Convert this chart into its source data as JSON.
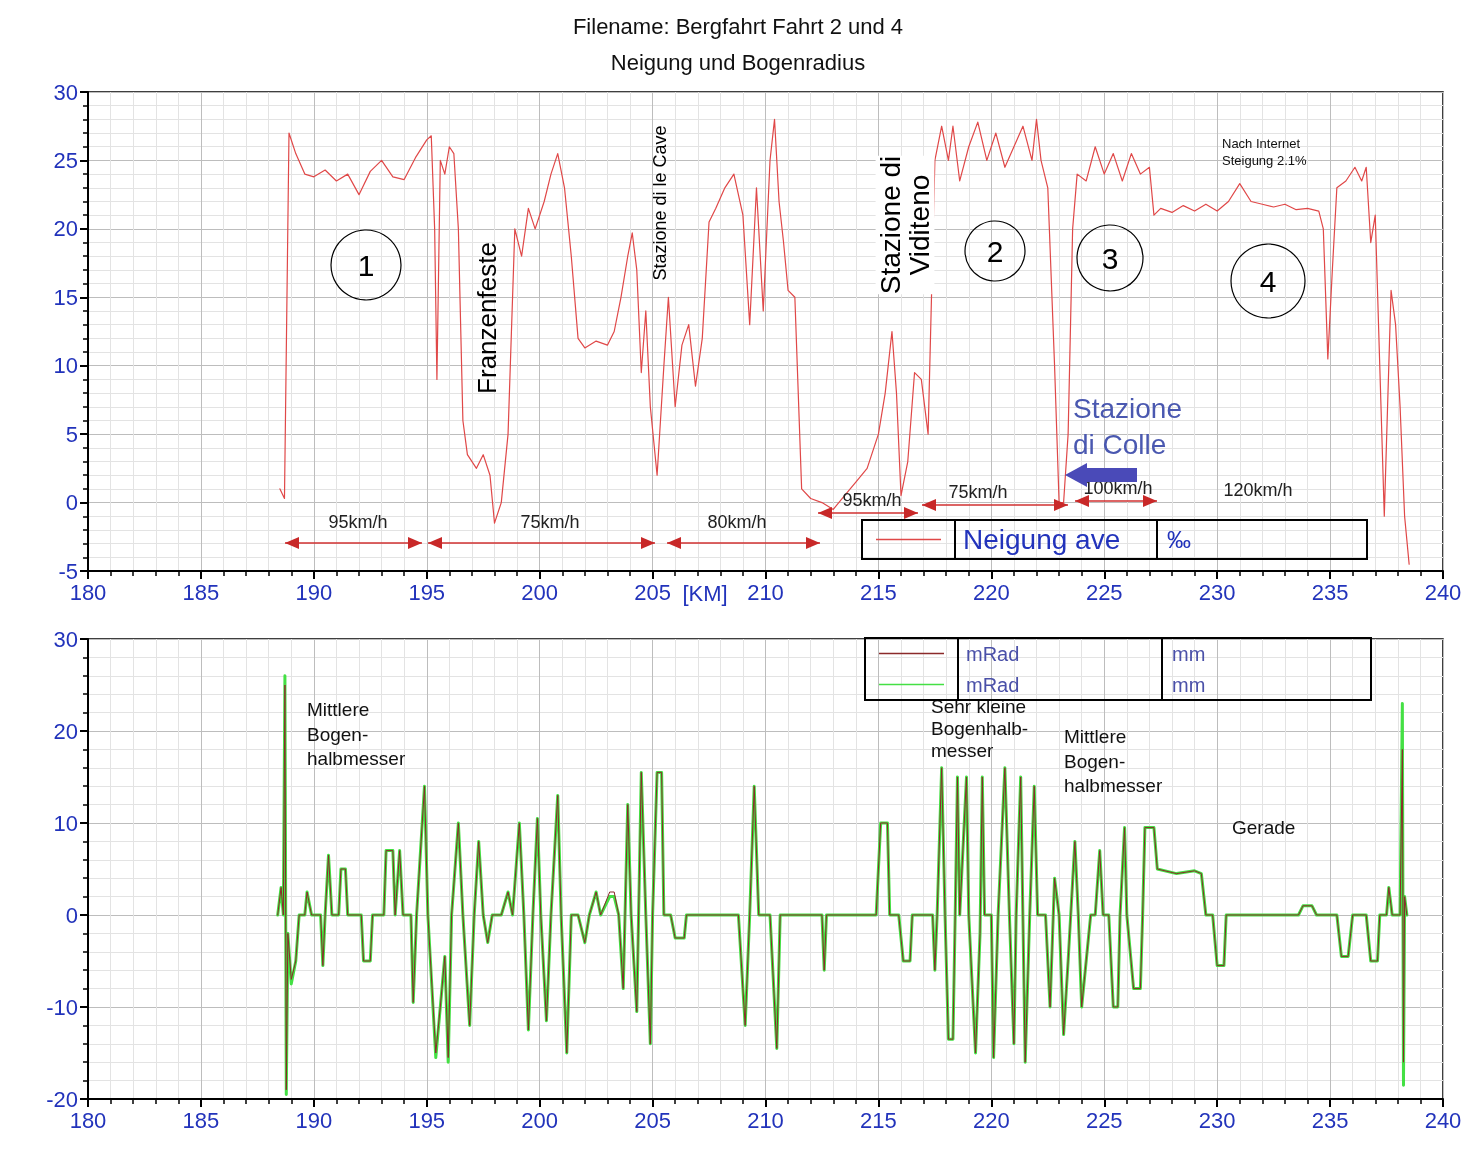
{
  "chart_data": [
    {
      "type": "line",
      "title": "Filename: Bergfahrt Fahrt 2 und 4",
      "subtitle": "Neigung und Bogenradius",
      "xlabel": "[KM]",
      "xlim": [
        180,
        240
      ],
      "xticks": [
        180,
        185,
        190,
        195,
        200,
        205,
        210,
        215,
        220,
        225,
        230,
        235,
        240
      ],
      "ylim": [
        -5,
        30
      ],
      "yticks": [
        -5,
        0,
        5,
        10,
        15,
        20,
        25,
        30
      ],
      "grid": true,
      "legend": "bottom right",
      "marker": "none",
      "line_style": "solid",
      "series": [
        {
          "name": "Neigung ave",
          "color": "#e04848",
          "x": [
            188.5,
            188.7,
            188.9,
            189.2,
            189.6,
            190,
            190.5,
            191,
            191.5,
            192,
            192.5,
            193,
            193.5,
            194,
            194.5,
            195,
            195.2,
            195.35,
            195.45,
            195.6,
            195.8,
            196,
            196.2,
            196.4,
            196.6,
            196.8,
            197.2,
            197.5,
            197.8,
            198,
            198.3,
            198.6,
            198.9,
            199.2,
            199.5,
            199.8,
            200.2,
            200.5,
            200.8,
            201.1,
            201.4,
            201.7,
            202,
            202.5,
            203,
            203.3,
            203.6,
            203.9,
            204.1,
            204.3,
            204.5,
            204.7,
            204.9,
            205.2,
            205.5,
            205.7,
            206,
            206.3,
            206.6,
            206.9,
            207.2,
            207.5,
            207.8,
            208.2,
            208.6,
            209,
            209.3,
            209.6,
            209.9,
            210.2,
            210.4,
            210.6,
            210.8,
            211,
            211.3,
            211.6,
            212,
            212.5,
            213,
            213.5,
            214,
            214.5,
            215,
            215.3,
            215.6,
            215.8,
            216,
            216.3,
            216.6,
            216.9,
            217.2,
            217.5,
            217.8,
            218.1,
            218.3,
            218.6,
            219,
            219.4,
            219.8,
            220.2,
            220.6,
            221,
            221.4,
            221.8,
            222,
            222.2,
            222.5,
            222.8,
            223,
            223.2,
            223.4,
            223.6,
            223.8,
            224.2,
            224.6,
            225,
            225.4,
            225.8,
            226.2,
            226.6,
            227,
            227.2,
            227.5,
            228,
            228.5,
            229,
            229.5,
            230,
            230.5,
            231,
            231.5,
            232,
            232.5,
            233,
            233.5,
            234,
            234.5,
            234.7,
            234.9,
            235.1,
            235.3,
            235.7,
            236.1,
            236.4,
            236.6,
            236.8,
            237,
            237.2,
            237.4,
            237.6,
            237.7,
            237.9,
            238.1,
            238.3,
            238.5
          ],
          "values": [
            1,
            0.3,
            27,
            25.5,
            24,
            23.8,
            24.3,
            23.5,
            24,
            22.5,
            24.2,
            25,
            23.8,
            23.6,
            25.2,
            26.5,
            26.8,
            20,
            9,
            25,
            24,
            26,
            25.5,
            20,
            6,
            3.5,
            2.5,
            3.5,
            2,
            -1.5,
            0,
            5,
            20,
            18,
            21.5,
            20,
            22,
            24,
            25.5,
            23,
            18,
            12,
            11.3,
            11.8,
            11.5,
            12.5,
            15,
            18,
            19.7,
            17,
            9.5,
            14,
            7,
            2,
            10,
            15,
            7,
            11.5,
            13,
            8.5,
            12,
            20.5,
            21.5,
            23,
            24,
            21,
            13,
            23,
            14,
            25,
            28,
            22,
            19,
            15.5,
            15,
            1,
            0.3,
            0,
            -0.5,
            0.5,
            1.5,
            2.5,
            5,
            8,
            12.5,
            8,
            0.5,
            3,
            9.5,
            9,
            5,
            25,
            27.5,
            25,
            27.5,
            23.5,
            26,
            27.8,
            25,
            27,
            24.5,
            26,
            27.5,
            25,
            28,
            25,
            23,
            10,
            0,
            0,
            5,
            20,
            24,
            23.5,
            26,
            24,
            25.5,
            23.5,
            25.5,
            24,
            24.5,
            21,
            21.5,
            21.2,
            21.7,
            21.3,
            21.8,
            21.3,
            22,
            23.3,
            22,
            21.8,
            21.6,
            21.8,
            21.4,
            21.5,
            21.3,
            20,
            10.5,
            17,
            23,
            23.5,
            24.5,
            23.5,
            24.5,
            19,
            21,
            10,
            -1,
            10,
            15.5,
            13,
            7,
            -1,
            -4.5
          ]
        }
      ],
      "annotations": [
        "1",
        "2",
        "3",
        "4",
        "Franzenfeste",
        "Stazione di le Cave",
        "Stazione di\nViditeno",
        "Stazione\ndi Colle",
        "Nach Internet\nSteigung 2.1%",
        "‰",
        "95km/h",
        "75km/h",
        "80km/h",
        "95km/h",
        "75km/h",
        "100km/h",
        "120km/h"
      ]
    },
    {
      "type": "line",
      "xlim": [
        180,
        240
      ],
      "xticks": [
        180,
        185,
        190,
        195,
        200,
        205,
        210,
        215,
        220,
        225,
        230,
        235,
        240
      ],
      "ylim": [
        -20,
        30
      ],
      "yticks": [
        -20,
        -10,
        0,
        10,
        20,
        30
      ],
      "grid": true,
      "legend": "top right",
      "marker": "none",
      "line_style": "solid",
      "series": [
        {
          "name": "mRad",
          "color": "#8b2a2a",
          "x": [
            188.4,
            188.55,
            188.65,
            188.72,
            188.78,
            188.85,
            189,
            189.2,
            189.35,
            189.6,
            189.7,
            189.9,
            190.3,
            190.4,
            190.5,
            190.65,
            190.8,
            191.1,
            191.2,
            191.4,
            191.5,
            192.1,
            192.2,
            192.5,
            192.6,
            193.1,
            193.2,
            193.5,
            193.6,
            193.8,
            193.95,
            194.3,
            194.4,
            194.55,
            194.9,
            195.05,
            195.4,
            195.6,
            195.8,
            195.95,
            196.1,
            196.4,
            196.6,
            196.9,
            197.1,
            197.3,
            197.5,
            197.7,
            197.9,
            198.3,
            198.6,
            198.8,
            199.1,
            199.3,
            199.5,
            199.7,
            199.9,
            200.05,
            200.3,
            200.5,
            200.8,
            200.95,
            201.2,
            201.4,
            201.7,
            202,
            202.2,
            202.5,
            202.7,
            203.1,
            203.3,
            203.5,
            203.7,
            203.9,
            204.05,
            204.3,
            204.5,
            204.7,
            204.9,
            205,
            205.2,
            205.4,
            205.5,
            205.8,
            206,
            206.4,
            206.5,
            208.8,
            209.1,
            209.3,
            209.5,
            209.7,
            210.2,
            210.5,
            210.65,
            212.5,
            212.6,
            212.7,
            214.9,
            215.1,
            215.4,
            215.5,
            215.9,
            216.1,
            216.4,
            216.5,
            217.4,
            217.5,
            217.6,
            217.8,
            217.95,
            218.1,
            218.3,
            218.4,
            218.5,
            218.6,
            218.9,
            219,
            219.3,
            219.5,
            219.6,
            219.7,
            220,
            220.1,
            220.3,
            220.6,
            220.8,
            221,
            221.1,
            221.3,
            221.5,
            221.7,
            221.9,
            222.05,
            222.4,
            222.6,
            222.8,
            223,
            223.2,
            223.4,
            223.7,
            223.85,
            224,
            224.2,
            224.4,
            224.6,
            224.8,
            224.95,
            225.2,
            225.4,
            225.6,
            225.7,
            225.9,
            226,
            226.3,
            226.6,
            226.7,
            226.8,
            227.2,
            227.35,
            228.2,
            229,
            229.3,
            229.5,
            229.8,
            230,
            230.3,
            230.4,
            233.6,
            233.8,
            234.2,
            234.4,
            235.3,
            235.5,
            235.8,
            236,
            236.6,
            236.8,
            237.1,
            237.2,
            237.5,
            237.6,
            237.75,
            238.1,
            238.2,
            238.25,
            238.3,
            238.4
          ],
          "values": [
            0,
            3,
            0,
            25,
            -19,
            -2,
            -7,
            -5,
            0,
            0,
            2.5,
            0,
            0,
            -5.5,
            0,
            6.5,
            0,
            0,
            5,
            5,
            0,
            0,
            -5,
            -5,
            0,
            0,
            7,
            7,
            0,
            7,
            0,
            0,
            -9.5,
            0,
            14,
            0,
            -15,
            -10,
            -4.5,
            -15.5,
            0,
            10,
            0,
            -12,
            0,
            8,
            0,
            -3,
            0,
            0,
            2.5,
            0,
            10,
            0,
            -12.5,
            0,
            10.5,
            0,
            -11.5,
            0,
            13,
            0,
            -15,
            0,
            0,
            -3,
            0,
            2.5,
            0,
            2.5,
            2.5,
            0,
            -8,
            12,
            0,
            -10.5,
            15.5,
            0,
            -14,
            0,
            15.5,
            15.5,
            0,
            0,
            -2.5,
            -2.5,
            0,
            0,
            -12,
            0,
            14,
            0,
            0,
            -14.5,
            0,
            0,
            -6,
            0,
            0,
            10,
            10,
            0,
            0,
            -5,
            -5,
            0,
            0,
            -6,
            0,
            16,
            0,
            -13.5,
            -13.5,
            0,
            15,
            0,
            15,
            0,
            -15,
            -2,
            15,
            0,
            0,
            -15.5,
            0,
            16,
            0,
            -14,
            0,
            15,
            -16,
            0,
            14,
            0,
            0,
            -10,
            4,
            0,
            -13,
            -5,
            8,
            0,
            -10,
            -5,
            0,
            0,
            7,
            0,
            0,
            -10,
            -10,
            0,
            9.5,
            0,
            -8,
            -8,
            0,
            9.5,
            9.5,
            5,
            4.5,
            4.8,
            4.5,
            0,
            0,
            -5.5,
            -5.5,
            0,
            0,
            1,
            1,
            0,
            0,
            -4.5,
            -4.5,
            0,
            0,
            -5,
            -5,
            0,
            0,
            3,
            0,
            0,
            18,
            -16,
            2,
            0
          ]
        },
        {
          "name": "mRad",
          "color": "#44e044",
          "x": [
            188.4,
            188.55,
            188.65,
            188.72,
            188.78,
            188.85,
            189,
            189.2,
            189.35,
            189.6,
            189.7,
            189.9,
            190.3,
            190.4,
            190.5,
            190.65,
            190.8,
            191.1,
            191.2,
            191.4,
            191.5,
            192.1,
            192.2,
            192.5,
            192.6,
            193.1,
            193.2,
            193.5,
            193.6,
            193.8,
            193.95,
            194.3,
            194.4,
            194.55,
            194.9,
            195.05,
            195.4,
            195.6,
            195.8,
            195.95,
            196.1,
            196.4,
            196.6,
            196.9,
            197.1,
            197.3,
            197.5,
            197.7,
            197.9,
            198.3,
            198.6,
            198.8,
            199.1,
            199.3,
            199.5,
            199.7,
            199.9,
            200.05,
            200.3,
            200.5,
            200.8,
            200.95,
            201.2,
            201.4,
            201.7,
            202,
            202.2,
            202.5,
            202.7,
            203.1,
            203.3,
            203.5,
            203.7,
            203.9,
            204.05,
            204.3,
            204.5,
            204.7,
            204.9,
            205,
            205.2,
            205.4,
            205.5,
            205.8,
            206,
            206.4,
            206.5,
            208.8,
            209.1,
            209.3,
            209.5,
            209.7,
            210.2,
            210.5,
            210.65,
            212.5,
            212.6,
            212.7,
            214.9,
            215.1,
            215.4,
            215.5,
            215.9,
            216.1,
            216.4,
            216.5,
            217.4,
            217.5,
            217.6,
            217.8,
            217.95,
            218.1,
            218.3,
            218.4,
            218.5,
            218.6,
            218.9,
            219,
            219.3,
            219.5,
            219.6,
            219.7,
            220,
            220.1,
            220.3,
            220.6,
            220.8,
            221,
            221.1,
            221.3,
            221.5,
            221.7,
            221.9,
            222.05,
            222.4,
            222.6,
            222.8,
            223,
            223.2,
            223.4,
            223.7,
            223.85,
            224,
            224.2,
            224.4,
            224.6,
            224.8,
            224.95,
            225.2,
            225.4,
            225.6,
            225.7,
            225.9,
            226,
            226.3,
            226.6,
            226.7,
            226.8,
            227.2,
            227.35,
            228.2,
            229,
            229.3,
            229.5,
            229.8,
            230,
            230.3,
            230.4,
            233.6,
            233.8,
            234.2,
            234.4,
            235.3,
            235.5,
            235.8,
            236,
            236.6,
            236.8,
            237.1,
            237.2,
            237.5,
            237.6,
            237.75,
            238.1,
            238.2,
            238.25,
            238.3,
            238.4
          ],
          "values": [
            0,
            3,
            0,
            26,
            -19.5,
            -2,
            -7.5,
            -5,
            0,
            0,
            2.5,
            0,
            0,
            -5.5,
            0,
            6.5,
            0,
            0,
            5,
            5,
            0,
            0,
            -5,
            -5,
            0,
            0,
            7,
            7,
            0,
            7,
            0,
            0,
            -9.5,
            0,
            14,
            0,
            -15.5,
            -10,
            -4.5,
            -16,
            0,
            10,
            0,
            -12,
            0,
            8,
            0,
            -3,
            0,
            0,
            2.5,
            0,
            10,
            0,
            -12.5,
            0,
            10.5,
            0,
            -11.5,
            0,
            13,
            0,
            -15,
            0,
            0,
            -3,
            0,
            2.5,
            0,
            2,
            2,
            0,
            -8,
            12,
            0,
            -10.5,
            15.5,
            0,
            -14,
            0,
            15.5,
            15.5,
            0,
            0,
            -2.5,
            -2.5,
            0,
            0,
            -12,
            0,
            14,
            0,
            0,
            -14.5,
            0,
            0,
            -6,
            0,
            0,
            10,
            10,
            0,
            0,
            -5,
            -5,
            0,
            0,
            -6,
            0,
            16,
            0,
            -13.5,
            -13.5,
            0,
            15,
            0,
            15,
            0,
            -15,
            -2,
            15,
            0,
            0,
            -15.5,
            0,
            16,
            0,
            -14,
            0,
            15,
            -16,
            0,
            14,
            0,
            0,
            -10,
            4,
            0,
            -13,
            -5,
            8,
            0,
            -10,
            -5,
            0,
            0,
            7,
            0,
            0,
            -10,
            -10,
            0,
            9.5,
            0,
            -8,
            -8,
            0,
            9.5,
            9.5,
            5,
            4.5,
            4.8,
            4.5,
            0,
            0,
            -5.5,
            -5.5,
            0,
            0,
            1,
            1,
            0,
            0,
            -4.5,
            -4.5,
            0,
            0,
            -5,
            -5,
            0,
            0,
            3,
            0,
            0,
            23,
            -18.5,
            2,
            0
          ]
        }
      ],
      "annotations": [
        "Mittlere\nBogen-\nhalbmesser",
        "Sehr kleine\nBogenhalb-\nmesser",
        "Mittlere\nBogen-\nhalbmesser",
        "Gerade",
        "mm",
        "mm"
      ]
    }
  ]
}
